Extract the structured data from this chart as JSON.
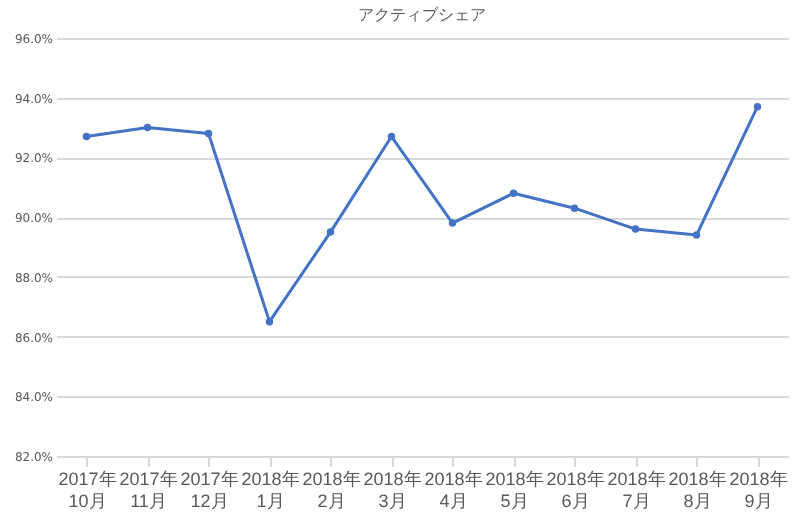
{
  "chart_data": {
    "type": "line",
    "title": "アクティブシェア",
    "categories": [
      "2017年10月",
      "2017年11月",
      "2017年12月",
      "2018年1月",
      "2018年2月",
      "2018年3月",
      "2018年4月",
      "2018年5月",
      "2018年6月",
      "2018年7月",
      "2018年8月",
      "2018年9月"
    ],
    "series": [
      {
        "color": "#4472c4",
        "values": [
          92.7,
          93.0,
          92.8,
          86.5,
          89.5,
          92.7,
          89.8,
          90.8,
          90.3,
          89.6,
          89.4,
          93.7
        ]
      }
    ],
    "ylim": [
      82,
      96
    ],
    "yticks": [
      {
        "value": 82,
        "label": "82.0%"
      },
      {
        "value": 84,
        "label": "84.0%"
      },
      {
        "value": 86,
        "label": "86.0%"
      },
      {
        "value": 88,
        "label": "88.0%"
      },
      {
        "value": 90,
        "label": "90.0%"
      },
      {
        "value": 92,
        "label": "92.0%"
      },
      {
        "value": 94,
        "label": "94.0%"
      },
      {
        "value": 96,
        "label": "96.0%"
      }
    ],
    "grid": "y",
    "marker": "circle",
    "legend": false
  }
}
